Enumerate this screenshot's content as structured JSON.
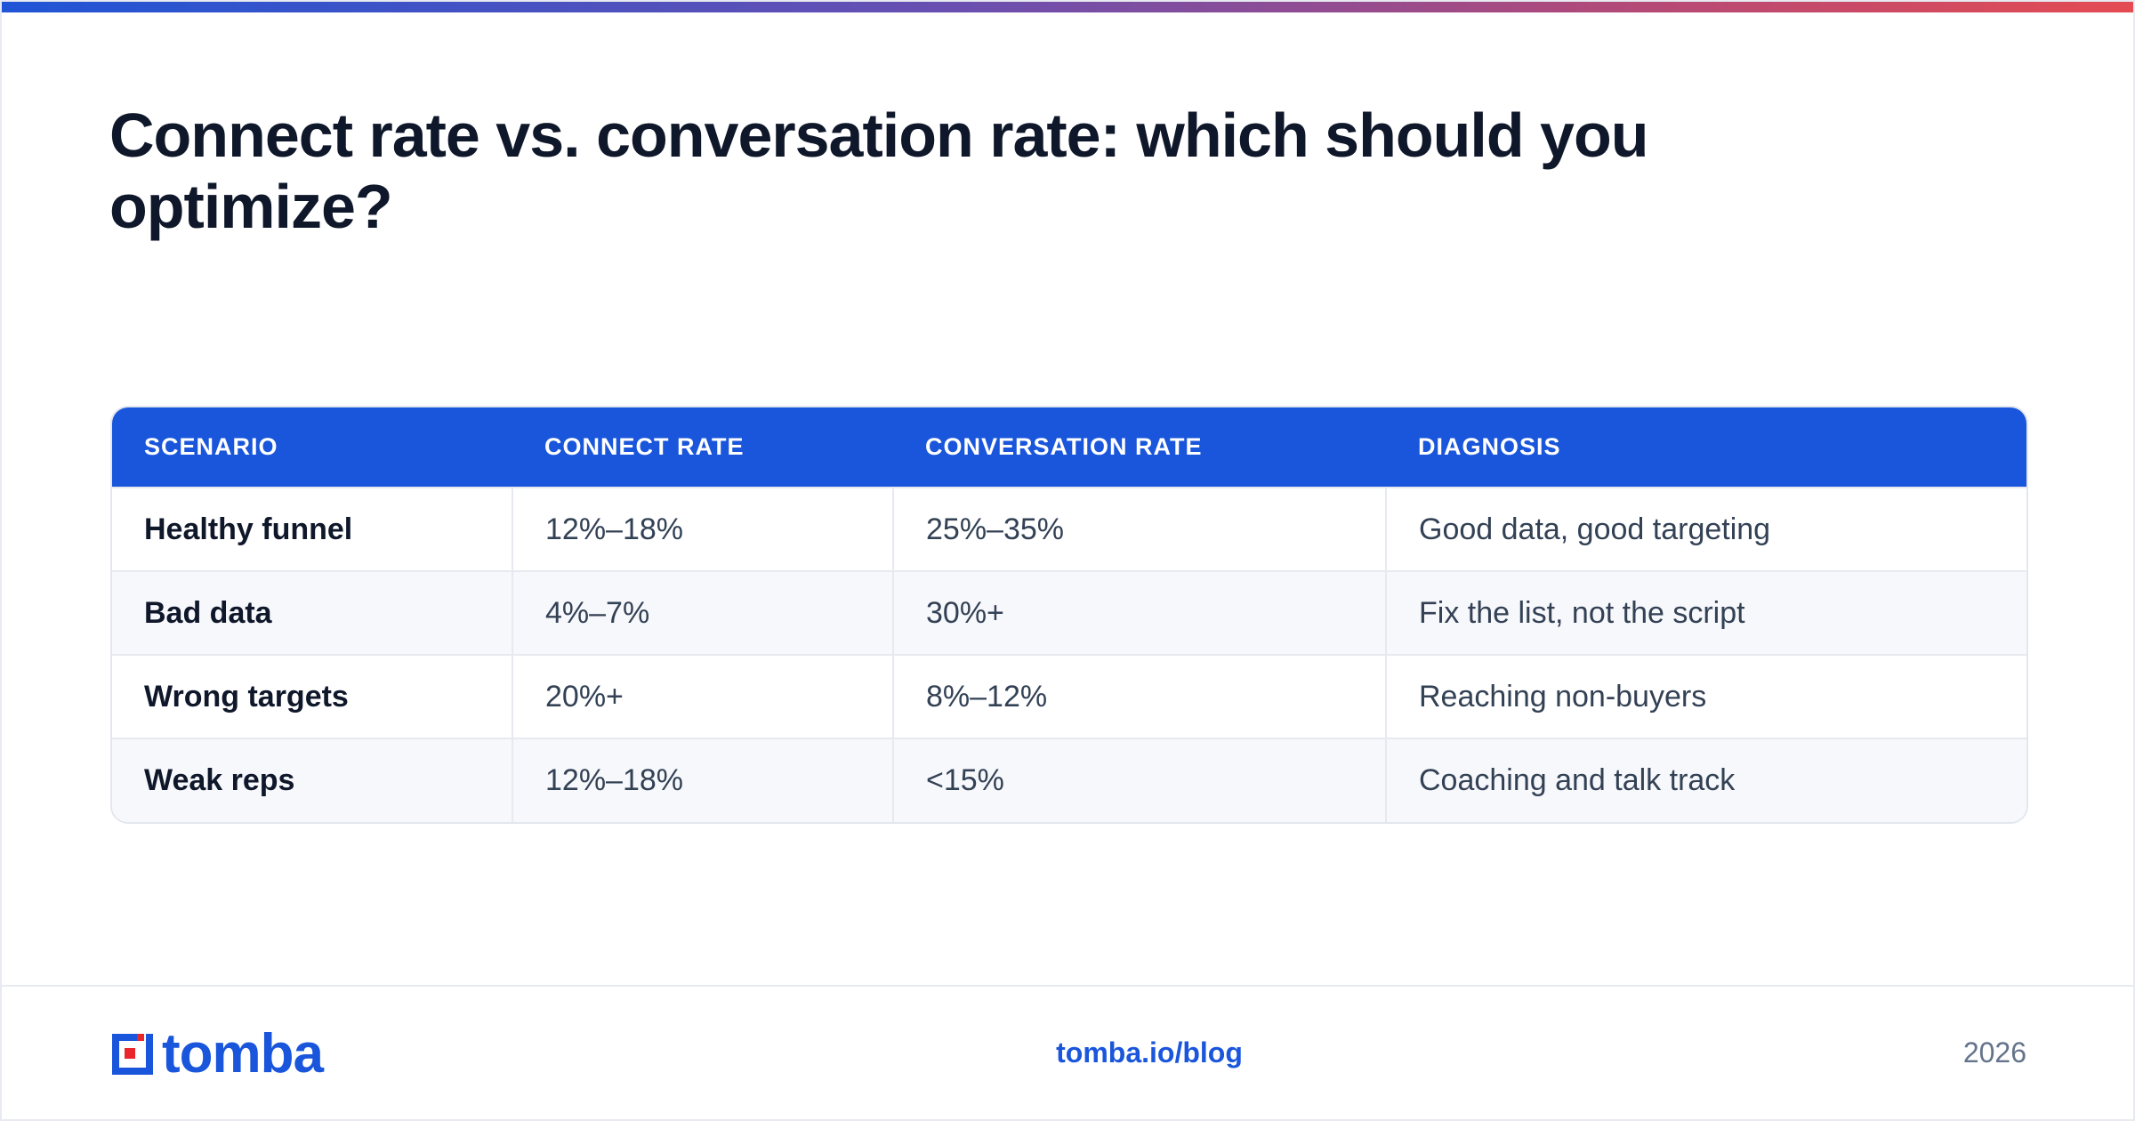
{
  "header": {
    "title": "Connect rate vs. conversation rate: which should you optimize?"
  },
  "table": {
    "columns": [
      "SCENARIO",
      "CONNECT RATE",
      "CONVERSATION RATE",
      "DIAGNOSIS"
    ],
    "rows": [
      [
        "Healthy funnel",
        "12%–18%",
        "25%–35%",
        "Good data, good targeting"
      ],
      [
        "Bad data",
        "4%–7%",
        "30%+",
        "Fix the list, not the script"
      ],
      [
        "Wrong targets",
        "20%+",
        "8%–12%",
        "Reaching non-buyers"
      ],
      [
        "Weak reps",
        "12%–18%",
        "<15%",
        "Coaching and talk track"
      ]
    ]
  },
  "footer": {
    "logo_text": "tomba",
    "link": "tomba.io/blog",
    "year": "2026"
  },
  "colors": {
    "accent": "#1a56db",
    "title": "#0f172a",
    "muted": "#64748b",
    "logo_red": "#e8262c"
  },
  "icons": {
    "logo": "tomba-logo-icon"
  }
}
